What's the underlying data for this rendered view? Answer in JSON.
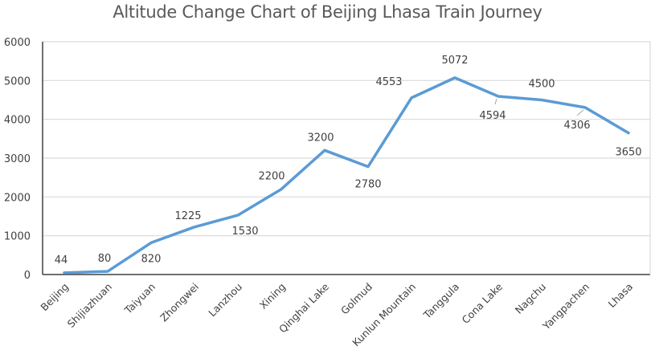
{
  "chart_data": {
    "type": "line",
    "title": "Altitude Change Chart of Beijing Lhasa Train Journey",
    "xlabel": "",
    "ylabel": "",
    "ylim": [
      0,
      6000
    ],
    "yticks": [
      0,
      1000,
      2000,
      3000,
      4000,
      5000,
      6000
    ],
    "grid": true,
    "legend": null,
    "categories": [
      "Beijing",
      "Shijiazhuan",
      "Taiyuan",
      "Zhongwei",
      "Lanzhou",
      "Xining",
      "Qinghai Lake",
      "Golmud",
      "Kunlun Mountain",
      "Tanggula",
      "Cona Lake",
      "Nagchu",
      "Yangpachen",
      "Lhasa"
    ],
    "series": [
      {
        "name": "Altitude",
        "color": "#5b9bd5",
        "values": [
          44,
          80,
          820,
          1225,
          1530,
          2200,
          3200,
          2780,
          4553,
          5072,
          4594,
          4500,
          4306,
          3650
        ],
        "data_labels": [
          "44",
          "80",
          "820",
          "1225",
          "1530",
          "2200",
          "3200",
          "2780",
          "4553",
          "5072",
          "4594",
          "4500",
          "4306",
          "3650"
        ]
      }
    ]
  },
  "colors": {
    "line": "#5b9bd5",
    "grid": "#d9d9d9",
    "axis": "#404040",
    "text": "#404040",
    "title": "#595959"
  }
}
